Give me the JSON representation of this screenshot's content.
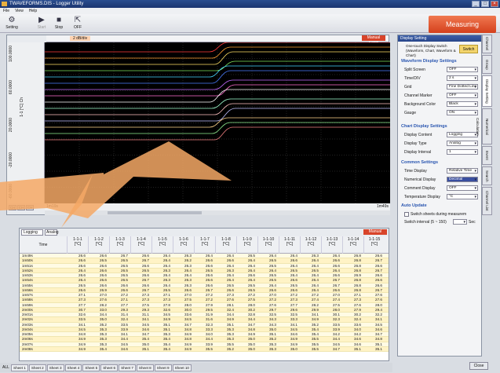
{
  "window": {
    "title": "TWAVEFORMS.DIS - Logger Utility"
  },
  "menu": [
    "File",
    "View",
    "Help"
  ],
  "toolbar": {
    "setting": "Setting",
    "start": "Start",
    "stop": "Stop",
    "off": "OFF"
  },
  "measuring": "Measuring",
  "chart": {
    "ruler_label": "2 dB/div",
    "manual_scroll": "Manual Scroll",
    "y_ticks": [
      "100.0000",
      "60.0000",
      "20.0000",
      "-20.0000",
      "-60.0000"
    ],
    "y_axis_label": "1-1 [°C] Ch",
    "x_left": "1m19s",
    "x_right": "1m49s",
    "ch_buttons": [
      "CH",
      "CH",
      "CH"
    ],
    "colors": [
      "#ff3b3b",
      "#ffa033",
      "#ffe066",
      "#7ee05a",
      "#46d6ff",
      "#4a7dff",
      "#c46aff",
      "#ff6fcf",
      "#ffffff",
      "#a0ffd0",
      "#ffc0c0",
      "#c0c0ff",
      "#ffd38a",
      "#90ee90",
      "#f08080"
    ]
  },
  "table": {
    "mode": "Logging",
    "mode2": "Analog",
    "manual_scroll": "Manual Scroll",
    "time_header": "Time",
    "columns": [
      "1-1-1",
      "1-1-2",
      "1-1-3",
      "1-1-4",
      "1-1-5",
      "1-1-6",
      "1-1-7",
      "1-1-8",
      "1-1-9",
      "1-1-10",
      "1-1-11",
      "1-1-12",
      "1-1-13",
      "1-1-14",
      "1-1-15"
    ],
    "unit": "[°C]",
    "rows": [
      {
        "t": "1m49s",
        "v": [
          "26.6",
          "26.6",
          "26.7",
          "26.6",
          "26.4",
          "26.3",
          "26.4",
          "26.4",
          "26.5",
          "26.4",
          "26.4",
          "26.3",
          "26.4",
          "26.8",
          "26.6"
        ]
      },
      {
        "t": "1m50s",
        "v": [
          "26.6",
          "26.5",
          "26.5",
          "26.7",
          "26.4",
          "26.2",
          "26.6",
          "26.6",
          "26.4",
          "26.5",
          "26.6",
          "26.4",
          "26.6",
          "26.8",
          "26.7"
        ]
      },
      {
        "t": "1m51s",
        "v": [
          "26.6",
          "26.6",
          "26.5",
          "26.6",
          "26.4",
          "26.3",
          "26.6",
          "26.4",
          "26.4",
          "26.5",
          "26.4",
          "26.4",
          "26.6",
          "26.8",
          "26.6"
        ]
      },
      {
        "t": "1m52s",
        "v": [
          "26.4",
          "26.6",
          "26.5",
          "26.5",
          "26.3",
          "26.4",
          "26.5",
          "26.3",
          "26.4",
          "26.4",
          "26.5",
          "26.5",
          "26.4",
          "26.8",
          "26.7"
        ]
      },
      {
        "t": "1m53s",
        "v": [
          "26.6",
          "26.6",
          "26.5",
          "26.6",
          "26.4",
          "26.4",
          "26.6",
          "26.4",
          "26.6",
          "26.5",
          "26.4",
          "26.4",
          "26.6",
          "26.9",
          "26.6"
        ]
      },
      {
        "t": "1m54s",
        "v": [
          "26.4",
          "26.6",
          "26.5",
          "26.7",
          "26.3",
          "26.3",
          "26.6",
          "26.4",
          "26.4",
          "26.5",
          "26.6",
          "26.4",
          "26.7",
          "26.8",
          "26.6"
        ]
      },
      {
        "t": "1m55s",
        "v": [
          "26.5",
          "26.6",
          "26.6",
          "26.6",
          "26.4",
          "26.3",
          "26.6",
          "26.5",
          "26.5",
          "26.4",
          "26.5",
          "26.4",
          "26.7",
          "26.8",
          "26.6"
        ]
      },
      {
        "t": "1m56s",
        "v": [
          "26.6",
          "26.9",
          "26.6",
          "26.7",
          "26.5",
          "26.6",
          "26.7",
          "26.6",
          "26.5",
          "26.6",
          "26.6",
          "26.4",
          "26.6",
          "26.8",
          "26.7"
        ]
      },
      {
        "t": "1m57s",
        "v": [
          "27.1",
          "27.0",
          "27.2",
          "27.3",
          "27.1",
          "27.0",
          "27.2",
          "27.3",
          "27.2",
          "27.0",
          "27.2",
          "27.2",
          "27.0",
          "27.1",
          "27.6"
        ]
      },
      {
        "t": "1m58s",
        "v": [
          "27.3",
          "27.6",
          "27.1",
          "27.3",
          "27.3",
          "27.5",
          "27.2",
          "27.6",
          "27.5",
          "27.2",
          "27.3",
          "27.4",
          "27.4",
          "27.3",
          "27.6"
        ]
      },
      {
        "t": "1m59s",
        "v": [
          "27.7",
          "28.2",
          "27.7",
          "27.5",
          "27.8",
          "28.0",
          "27.9",
          "28.1",
          "28.0",
          "27.6",
          "27.7",
          "28.2",
          "27.5",
          "27.6",
          "28.0"
        ]
      },
      {
        "t": "2m00s",
        "v": [
          "30.7",
          "33.0",
          "29.3",
          "29.3",
          "32.6",
          "30.0",
          "29.5",
          "32.4",
          "30.2",
          "29.7",
          "29.6",
          "29.9",
          "28.0",
          "27.9",
          "29.4"
        ]
      },
      {
        "t": "2m01s",
        "v": [
          "32.6",
          "34.4",
          "31.4",
          "31.1",
          "34.5",
          "33.6",
          "31.9",
          "34.4",
          "32.8",
          "32.5",
          "32.5",
          "34.1",
          "30.1",
          "30.2",
          "32.2"
        ]
      },
      {
        "t": "2m02s",
        "v": [
          "33.5",
          "35.0",
          "32.4",
          "34.1",
          "34.9",
          "34.5",
          "31.6",
          "34.9",
          "34.4",
          "34.3",
          "33.3",
          "34.9",
          "32.3",
          "32.4",
          "34.1"
        ]
      },
      {
        "t": "2m03s",
        "v": [
          "34.1",
          "35.2",
          "33.5",
          "34.5",
          "35.1",
          "34.7",
          "32.3",
          "35.1",
          "34.7",
          "34.3",
          "34.1",
          "35.2",
          "33.5",
          "33.6",
          "34.5"
        ]
      },
      {
        "t": "2m04s",
        "v": [
          "34.5",
          "35.3",
          "33.9",
          "34.6",
          "35.1",
          "34.8",
          "33.3",
          "35.3",
          "34.8",
          "35.0",
          "34.5",
          "35.4",
          "33.9",
          "34.0",
          "34.6"
        ]
      },
      {
        "t": "2m05s",
        "v": [
          "34.8",
          "35.3",
          "34.1",
          "34.7",
          "35.3",
          "34.9",
          "34.0",
          "35.3",
          "34.9",
          "35.1",
          "34.6",
          "35.4",
          "34.2",
          "34.2",
          "34.7"
        ]
      },
      {
        "t": "2m06s",
        "v": [
          "34.9",
          "35.3",
          "34.4",
          "35.4",
          "35.4",
          "34.8",
          "34.4",
          "35.3",
          "35.0",
          "35.2",
          "34.9",
          "35.5",
          "34.4",
          "34.6",
          "34.8"
        ]
      },
      {
        "t": "2m07s",
        "v": [
          "34.9",
          "35.3",
          "34.5",
          "35.0",
          "35.4",
          "34.9",
          "33.9",
          "35.5",
          "35.0",
          "35.3",
          "34.9",
          "35.5",
          "34.5",
          "34.6",
          "35.1"
        ]
      },
      {
        "t": "2m08s",
        "v": [
          "34.9",
          "35.4",
          "34.6",
          "35.1",
          "35.4",
          "34.9",
          "35.5",
          "35.2",
          "35.0",
          "35.3",
          "35.0",
          "35.5",
          "34.7",
          "35.1",
          "35.1"
        ]
      }
    ]
  },
  "panel": {
    "title": "Display Setting",
    "one_touch": "One-touch Display Switch (Waveform, Chart, Waveform & Chart)",
    "switch": "Switch",
    "wave_section": "Waveform Display Settings",
    "wave_items": [
      [
        "Split Screen",
        "OFF"
      ],
      [
        "Time/DIV",
        "2 s"
      ],
      [
        "Grid",
        "Fine Dotted Line"
      ],
      [
        "Channel Marker",
        "OFF"
      ],
      [
        "Background Color",
        "Black"
      ],
      [
        "Gauge",
        "ON"
      ]
    ],
    "gauge_value": "2",
    "chart_section": "Chart Display Settings",
    "chart_items": [
      [
        "Display Content",
        "Logging"
      ],
      [
        "Display Type",
        "Analog"
      ],
      [
        "Display Interval",
        "1"
      ]
    ],
    "common_section": "Common Settings",
    "common_items": [
      [
        "Time Display",
        "Relative Time"
      ],
      [
        "Numerical Display",
        "Decimal"
      ],
      [
        "Comment Display",
        "OFF"
      ],
      [
        "Temperature Display",
        "°C"
      ]
    ],
    "auto_section": "Auto Update",
    "auto_chk": "Switch sheets during measurem",
    "switch_interval": "Switch interval (5 ~ 150)",
    "sec": "Sec"
  },
  "side_tabs": [
    "Channel",
    "Group",
    "Display Setting",
    "Numerical Calculation",
    "Event",
    "Search",
    "Channel List"
  ],
  "close": "Close",
  "sheets": {
    "all": "ALL",
    "tabs": [
      "Sheet 1",
      "Sheet 2",
      "Sheet 3",
      "Sheet 4",
      "Sheet 5",
      "Sheet 6",
      "Sheet 7",
      "Sheet 8",
      "Sheet 9",
      "Sheet 10"
    ]
  }
}
